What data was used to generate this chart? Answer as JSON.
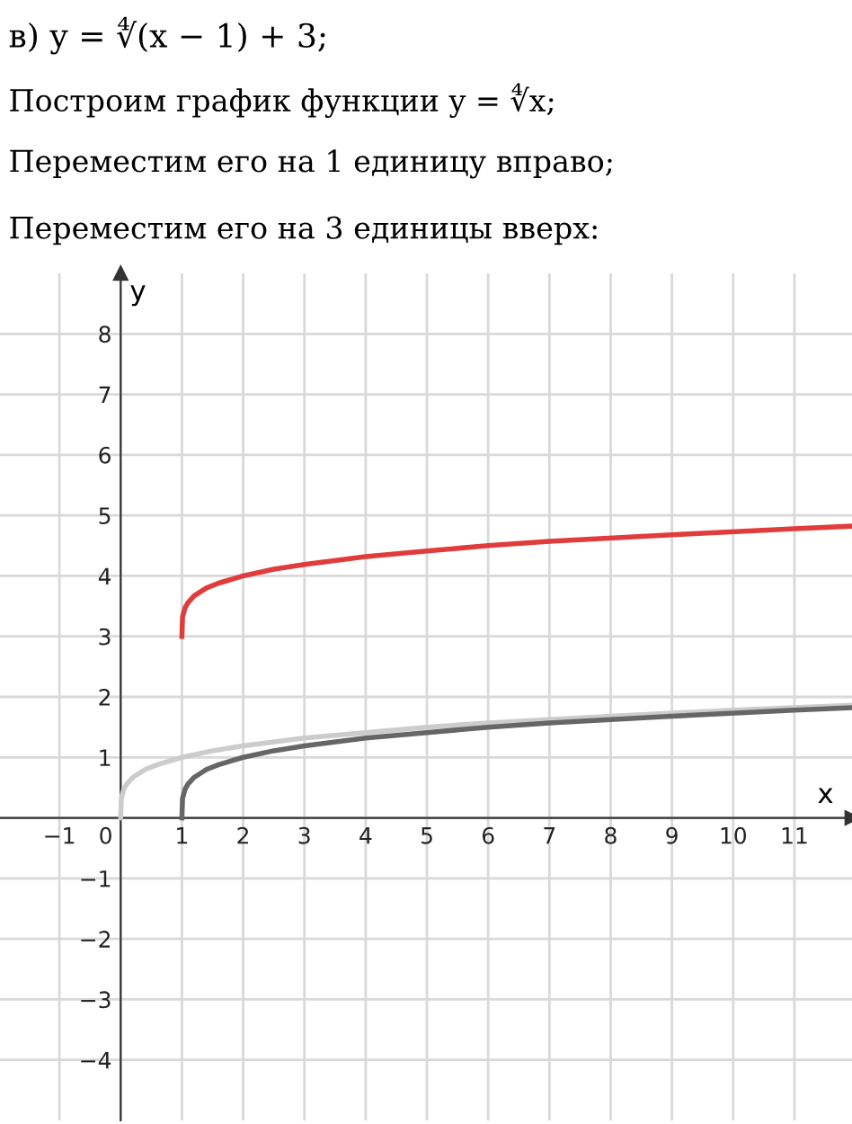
{
  "chart_data": {
    "type": "line",
    "title": "в) y = ∜(x − 1) + 3;",
    "annotations": [
      "Построим график функции y = ∜x;",
      "Переместим его на 1 единицу вправо;",
      "Переместим его на 3 единицы вверх:"
    ],
    "xlabel": "x",
    "ylabel": "y",
    "series": [
      {
        "color": "#cccccc",
        "x": [
          0,
          0.01,
          0.05,
          0.1,
          0.2,
          0.4,
          0.6,
          1,
          1.5,
          2,
          3,
          4,
          5,
          6,
          8,
          10,
          11.9
        ],
        "values": [
          0,
          0.32,
          0.47,
          0.56,
          0.67,
          0.8,
          0.88,
          1,
          1.11,
          1.19,
          1.32,
          1.41,
          1.5,
          1.57,
          1.68,
          1.78,
          1.86
        ]
      },
      {
        "color": "#666666",
        "x": [
          1,
          1.01,
          1.05,
          1.1,
          1.2,
          1.4,
          1.6,
          2,
          2.5,
          3,
          4,
          5,
          6,
          7,
          9,
          11,
          11.9
        ],
        "values": [
          0,
          0.32,
          0.47,
          0.56,
          0.67,
          0.8,
          0.88,
          1,
          1.11,
          1.19,
          1.32,
          1.41,
          1.5,
          1.57,
          1.68,
          1.78,
          1.82
        ]
      },
      {
        "color": "#e03c3c",
        "x": [
          1,
          1.01,
          1.05,
          1.1,
          1.2,
          1.4,
          1.6,
          2,
          2.5,
          3,
          4,
          5,
          6,
          7,
          9,
          11,
          11.9
        ],
        "values": [
          3,
          3.32,
          3.47,
          3.56,
          3.67,
          3.8,
          3.88,
          4,
          4.11,
          4.19,
          4.32,
          4.41,
          4.5,
          4.57,
          4.68,
          4.78,
          4.82
        ]
      }
    ],
    "xlim": [
      -1.97,
      11.94
    ],
    "ylim": [
      -5,
      9
    ],
    "xticks": [
      -1,
      0,
      1,
      2,
      3,
      4,
      5,
      6,
      7,
      8,
      9,
      10,
      11
    ],
    "yticks": [
      -4,
      -3,
      -2,
      -1,
      {
        "value": 0,
        "label": null
      },
      1,
      2,
      3,
      4,
      5,
      6,
      7,
      8
    ],
    "grid": true,
    "legend": false
  }
}
